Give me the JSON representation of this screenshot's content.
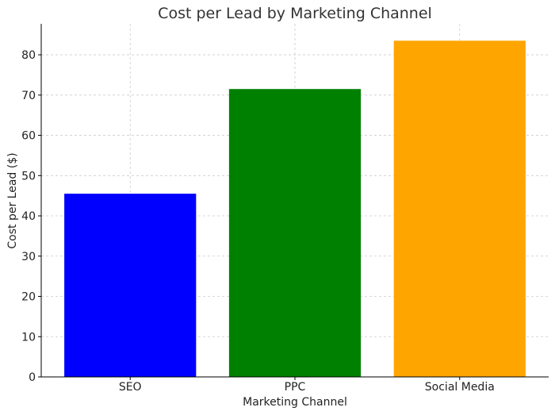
{
  "chart_data": {
    "type": "bar",
    "title": "Cost per Lead by Marketing Channel",
    "xlabel": "Marketing Channel",
    "ylabel": "Cost per Lead ($)",
    "categories": [
      "SEO",
      "PPC",
      "Social Media"
    ],
    "values": [
      45.5,
      71.5,
      83.5
    ],
    "colors": [
      "#0000ff",
      "#008000",
      "#ffa500"
    ],
    "ylim": [
      0,
      87.7
    ],
    "yticks": [
      0,
      10,
      20,
      30,
      40,
      50,
      60,
      70,
      80
    ],
    "grid": true
  }
}
